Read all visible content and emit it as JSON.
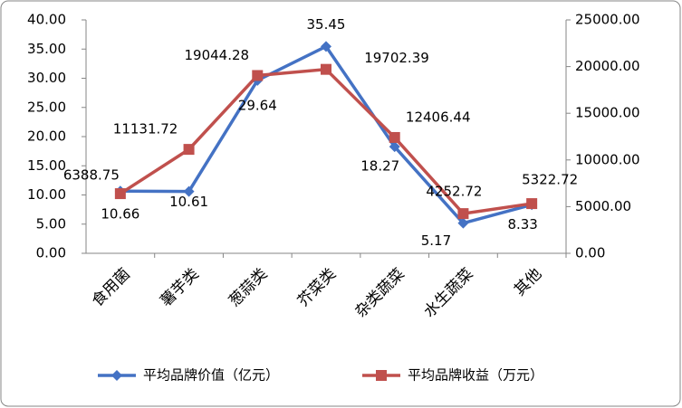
{
  "chart_data": {
    "type": "line",
    "categories": [
      "食用菌",
      "薯芋类",
      "葱蒜类",
      "芥菜类",
      "杂类蔬菜",
      "水生蔬菜",
      "其他"
    ],
    "series": [
      {
        "name": "平均品牌价值（亿元）",
        "color": "#4472c4",
        "marker": "diamond",
        "values": [
          10.66,
          10.61,
          29.64,
          35.45,
          18.27,
          5.17,
          8.33
        ]
      },
      {
        "name": "平均品牌收益（万元）",
        "color": "#c0504d",
        "marker": "square",
        "axis": "y2",
        "values": [
          6388.75,
          11131.72,
          19044.28,
          19702.39,
          12406.44,
          4252.72,
          5322.72
        ]
      }
    ],
    "ylim": [
      0,
      40
    ],
    "yticks": [
      {
        "value": 0,
        "label": "0.00"
      },
      {
        "value": 5,
        "label": "5.00"
      },
      {
        "value": 10,
        "label": "10.00"
      },
      {
        "value": 15,
        "label": "15.00"
      },
      {
        "value": 20,
        "label": "20.00"
      },
      {
        "value": 25,
        "label": "25.00"
      },
      {
        "value": 30,
        "label": "30.00"
      },
      {
        "value": 35,
        "label": "35.00"
      },
      {
        "value": 40,
        "label": "40.00"
      }
    ],
    "y2lim": [
      0,
      25000
    ],
    "y2ticks": [
      {
        "value": 0,
        "label": "0.00"
      },
      {
        "value": 5000,
        "label": "5000.00"
      },
      {
        "value": 10000,
        "label": "10000.00"
      },
      {
        "value": 15000,
        "label": "15000.00"
      },
      {
        "value": 20000,
        "label": "20000.00"
      },
      {
        "value": 25000,
        "label": "25000.00"
      }
    ],
    "grid": false,
    "legend": "bottom"
  }
}
